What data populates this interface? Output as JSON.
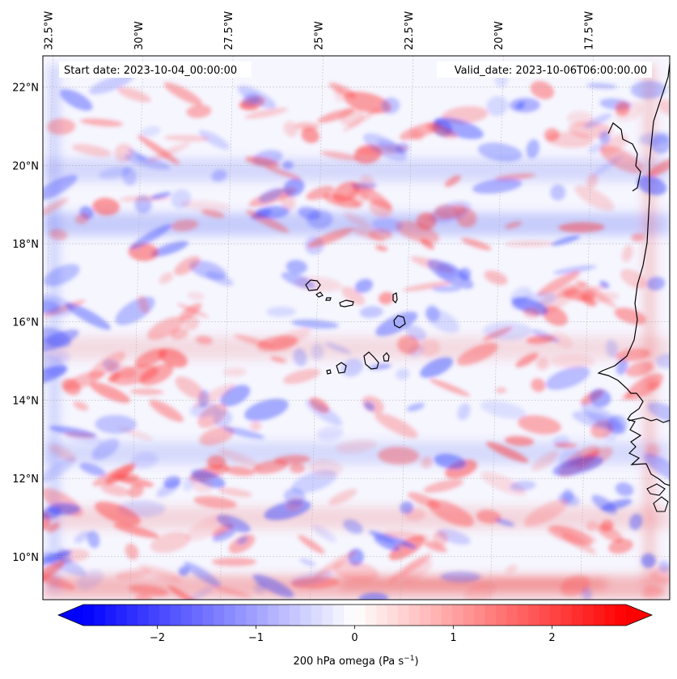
{
  "map": {
    "start_date_label": "Start date: 2023-10-04_00:00:00",
    "valid_date_label": "Valid_date: 2023-10-06T06:00:00.00",
    "lon_ticks": [
      "32.5°W",
      "30°W",
      "27.5°W",
      "25°W",
      "22.5°W",
      "20°W",
      "17.5°W"
    ],
    "lat_ticks": [
      "22°N",
      "20°N",
      "18°N",
      "16°N",
      "14°N",
      "12°N",
      "10°N"
    ],
    "lon_values": [
      -32.5,
      -30,
      -27.5,
      -25,
      -22.5,
      -20,
      -17.5
    ],
    "lat_values": [
      22,
      20,
      18,
      16,
      14,
      12,
      10
    ],
    "extent": {
      "lon_min": -32.6,
      "lon_max": -15.2,
      "lat_min": 8.9,
      "lat_max": 22.8
    }
  },
  "colorbar": {
    "label_main": "200 hPa omega (Pa s",
    "label_sup": "−1",
    "label_end": ")",
    "ticks": [
      "−2",
      "−1",
      "0",
      "1",
      "2"
    ],
    "tick_values": [
      -2,
      -1,
      0,
      1,
      2
    ],
    "vmin": -2.75,
    "vmax": 2.75,
    "cmap": "bwr",
    "colors": {
      "negative": "#0000ff",
      "zero": "#ffffff",
      "positive": "#ff0000"
    }
  }
}
